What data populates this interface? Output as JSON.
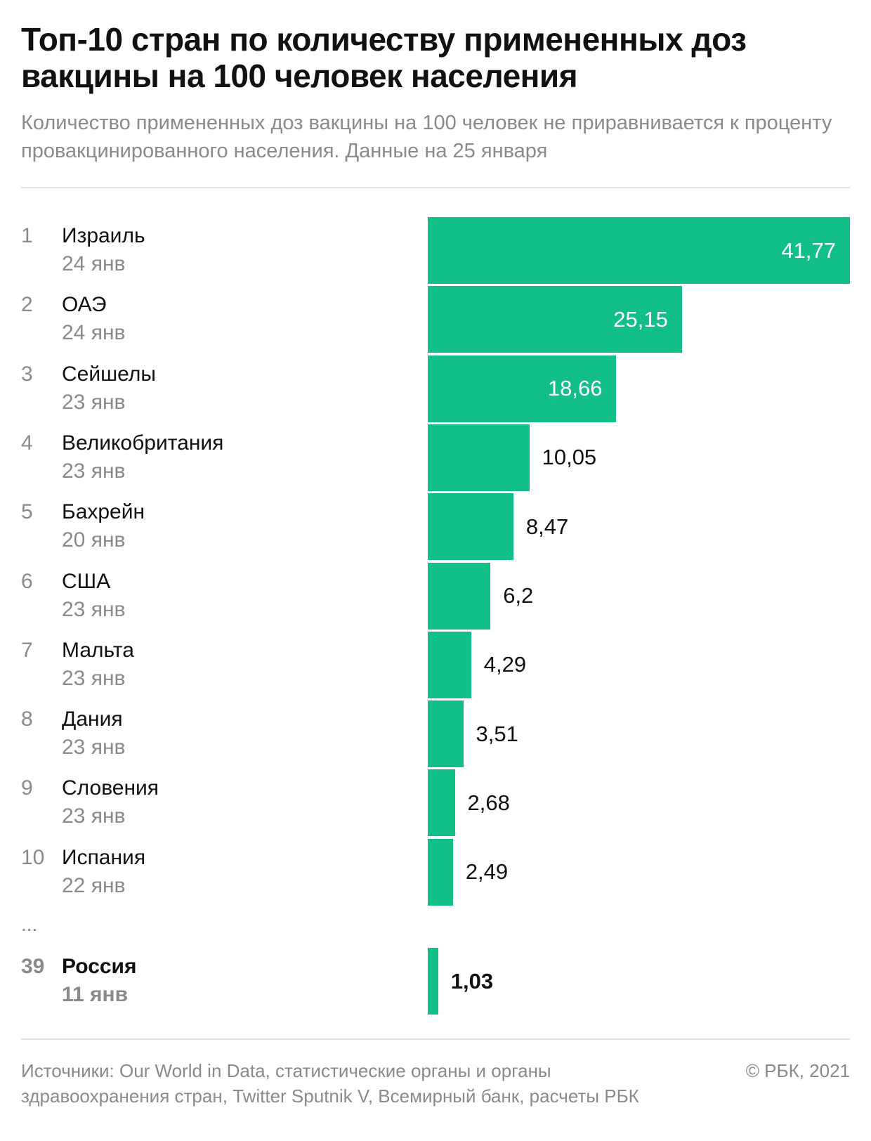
{
  "title": "Топ-10 стран по количеству примененных доз вакцины на 100 человек населения",
  "subtitle": "Количество примененных доз вакцины на 100 человек не приравнивается к проценту провакцинированного населения. Данные на 25 января",
  "ellipsis": "...",
  "footer": {
    "source": "Источники: Our World in Data, статистические органы и органы здравоохранения стран, Twitter Sputnik V, Всемирный банк, расчеты РБК",
    "copyright": "© РБК, 2021"
  },
  "colors": {
    "bar": "#13bf89",
    "muted_text": "#8a8a8a"
  },
  "chart_data": {
    "type": "bar",
    "orientation": "horizontal",
    "rows": [
      {
        "rank": "1",
        "country": "Израиль",
        "date": "24 янв",
        "value": 41.77,
        "label": "41,77"
      },
      {
        "rank": "2",
        "country": "ОАЭ",
        "date": "24 янв",
        "value": 25.15,
        "label": "25,15"
      },
      {
        "rank": "3",
        "country": "Сейшелы",
        "date": "23 янв",
        "value": 18.66,
        "label": "18,66"
      },
      {
        "rank": "4",
        "country": "Великобритания",
        "date": "23 янв",
        "value": 10.05,
        "label": "10,05"
      },
      {
        "rank": "5",
        "country": "Бахрейн",
        "date": "20 янв",
        "value": 8.47,
        "label": "8,47"
      },
      {
        "rank": "6",
        "country": "США",
        "date": "23 янв",
        "value": 6.2,
        "label": "6,2"
      },
      {
        "rank": "7",
        "country": "Мальта",
        "date": "23 янв",
        "value": 4.29,
        "label": "4,29"
      },
      {
        "rank": "8",
        "country": "Дания",
        "date": "23 янв",
        "value": 3.51,
        "label": "3,51"
      },
      {
        "rank": "9",
        "country": "Словения",
        "date": "23 янв",
        "value": 2.68,
        "label": "2,68"
      },
      {
        "rank": "10",
        "country": "Испания",
        "date": "22 янв",
        "value": 2.49,
        "label": "2,49"
      }
    ],
    "highlight": {
      "rank": "39",
      "country": "Россия",
      "date": "11 янв",
      "value": 1.03,
      "label": "1,03"
    },
    "xlim": [
      0,
      41.77
    ]
  }
}
